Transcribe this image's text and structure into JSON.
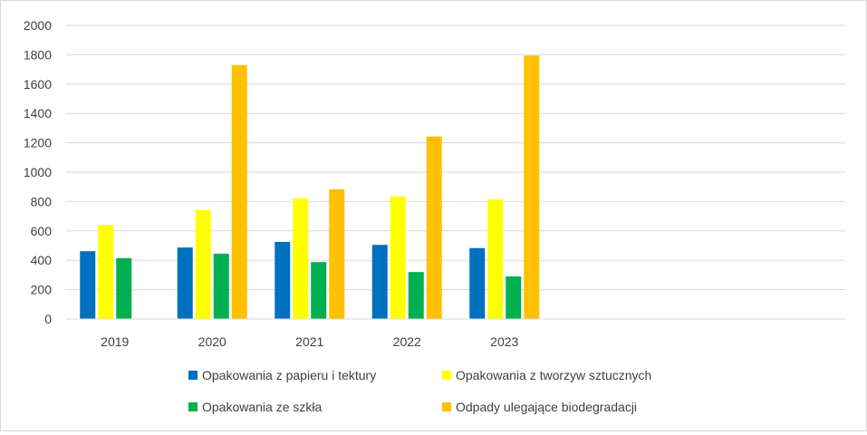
{
  "chart_data": {
    "type": "bar",
    "categories": [
      "2019",
      "2020",
      "2021",
      "2022",
      "2023"
    ],
    "extra_empty_category_slots": 3,
    "ylim": [
      0,
      2000
    ],
    "ytick_step": 200,
    "yticks": [
      "0",
      "200",
      "400",
      "600",
      "800",
      "1000",
      "1200",
      "1400",
      "1600",
      "1800",
      "2000"
    ],
    "grid": true,
    "legend_position": "bottom",
    "series": [
      {
        "name": "Opakowania z papieru i tektury",
        "color": "#0070c0",
        "values": [
          462,
          487,
          525,
          505,
          483
        ]
      },
      {
        "name": "Opakowania z tworzyw sztucznych",
        "color": "#ffff00",
        "values": [
          640,
          742,
          822,
          835,
          816
        ]
      },
      {
        "name": "Opakowania ze szkła",
        "color": "#00b050",
        "values": [
          415,
          445,
          388,
          320,
          290
        ]
      },
      {
        "name": "Odpady ulegające biodegradacji",
        "color": "#ffc000",
        "values": [
          null,
          1730,
          883,
          1243,
          1795
        ]
      }
    ]
  }
}
